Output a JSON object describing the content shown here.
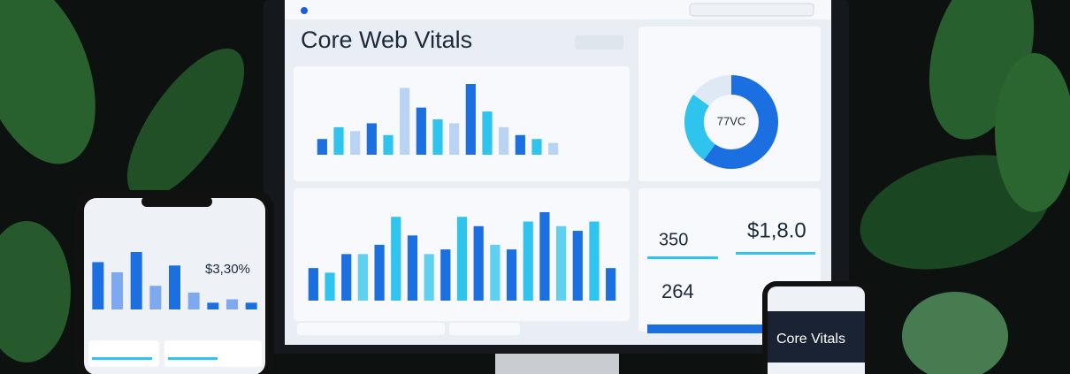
{
  "header": {
    "title": "Core Web Vitals"
  },
  "top_chart": {
    "values": [
      20,
      35,
      30,
      40,
      25,
      85,
      60,
      45,
      40,
      90,
      55,
      35,
      25,
      20,
      15
    ]
  },
  "donut": {
    "center": "77VC",
    "values": [
      60,
      25,
      15
    ],
    "colors": [
      "#1b6fe0",
      "#2ec4ee",
      "#dfe9f5"
    ]
  },
  "bottom_chart": {
    "values": [
      35,
      30,
      50,
      50,
      60,
      90,
      70,
      50,
      55,
      90,
      80,
      60,
      55,
      85,
      95,
      80,
      75,
      85,
      35
    ]
  },
  "metrics": {
    "first": "350",
    "second": "$1,8.0",
    "third": "264"
  },
  "phone_left": {
    "value": "$3,30%",
    "bars": [
      70,
      55,
      85,
      35,
      65,
      25,
      10,
      15,
      10
    ]
  },
  "phone_right": {
    "title": "Core Vitals"
  }
}
